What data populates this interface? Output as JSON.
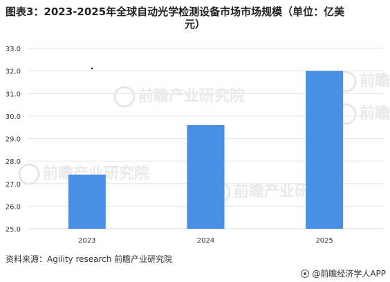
{
  "title_line1": "图表3：2023-2025年全球自动光学检测设备市场市场规模（单位：亿美",
  "title_line2": "元）",
  "source": "资料来源：Agility research 前瞻产业研究院",
  "brand": "@前瞻经济学人APP",
  "watermark": {
    "text": "前瞻产业研究院",
    "color": "#cfcfcf"
  },
  "colors": {
    "bar": "#4a8fe6",
    "grid": "#e6e6e6",
    "axis_text": "#333333"
  },
  "chart_data": {
    "type": "bar",
    "categories": [
      "2023",
      "2024",
      "2025"
    ],
    "values": [
      27.4,
      29.6,
      32.0
    ],
    "ylim": [
      25.0,
      33.0
    ],
    "yticks": [
      "25.0",
      "26.0",
      "27.0",
      "28.0",
      "29.0",
      "30.0",
      "31.0",
      "32.0",
      "33.0"
    ],
    "grid": true,
    "legend": "none"
  }
}
